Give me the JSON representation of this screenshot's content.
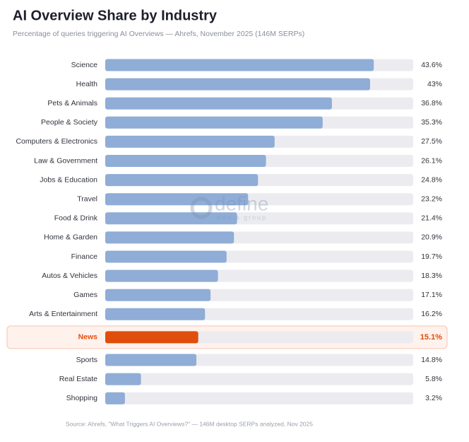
{
  "chart_data": {
    "type": "bar",
    "orientation": "horizontal",
    "title": "AI Overview Share by Industry",
    "subtitle": "Percentage of queries triggering AI Overviews — Ahrefs, November 2025 (146M SERPs)",
    "categories": [
      "Science",
      "Health",
      "Pets & Animals",
      "People & Society",
      "Computers & Electronics",
      "Law & Government",
      "Jobs & Education",
      "Travel",
      "Food & Drink",
      "Home & Garden",
      "Finance",
      "Autos & Vehicles",
      "Games",
      "Arts & Entertainment",
      "News",
      "Sports",
      "Real Estate",
      "Shopping"
    ],
    "values": [
      43.6,
      43,
      36.8,
      35.3,
      27.5,
      26.1,
      24.8,
      23.2,
      21.4,
      20.9,
      19.7,
      18.3,
      17.1,
      16.2,
      15.1,
      14.8,
      5.8,
      3.2
    ],
    "value_labels": [
      "43.6%",
      "43%",
      "36.8%",
      "35.3%",
      "27.5%",
      "26.1%",
      "24.8%",
      "23.2%",
      "21.4%",
      "20.9%",
      "19.7%",
      "18.3%",
      "17.1%",
      "16.2%",
      "15.1%",
      "14.8%",
      "5.8%",
      "3.2%"
    ],
    "colors": [
      "#8fadd6",
      "#8fadd6",
      "#8fadd6",
      "#8fadd6",
      "#8fadd6",
      "#8fadd6",
      "#8fadd6",
      "#8fadd6",
      "#8fadd6",
      "#8fadd6",
      "#8fadd6",
      "#8fadd6",
      "#8fadd6",
      "#8fadd6",
      "#e04e0b",
      "#8fadd6",
      "#8fadd6",
      "#8fadd6"
    ],
    "xlim": [
      0,
      50
    ],
    "source": "Source: Ahrefs, \"What Triggers AI Overviews?\" — 146M desktop SERPs analyzed, Nov 2025",
    "watermark": {
      "name": "define",
      "tagline": "media group"
    }
  }
}
